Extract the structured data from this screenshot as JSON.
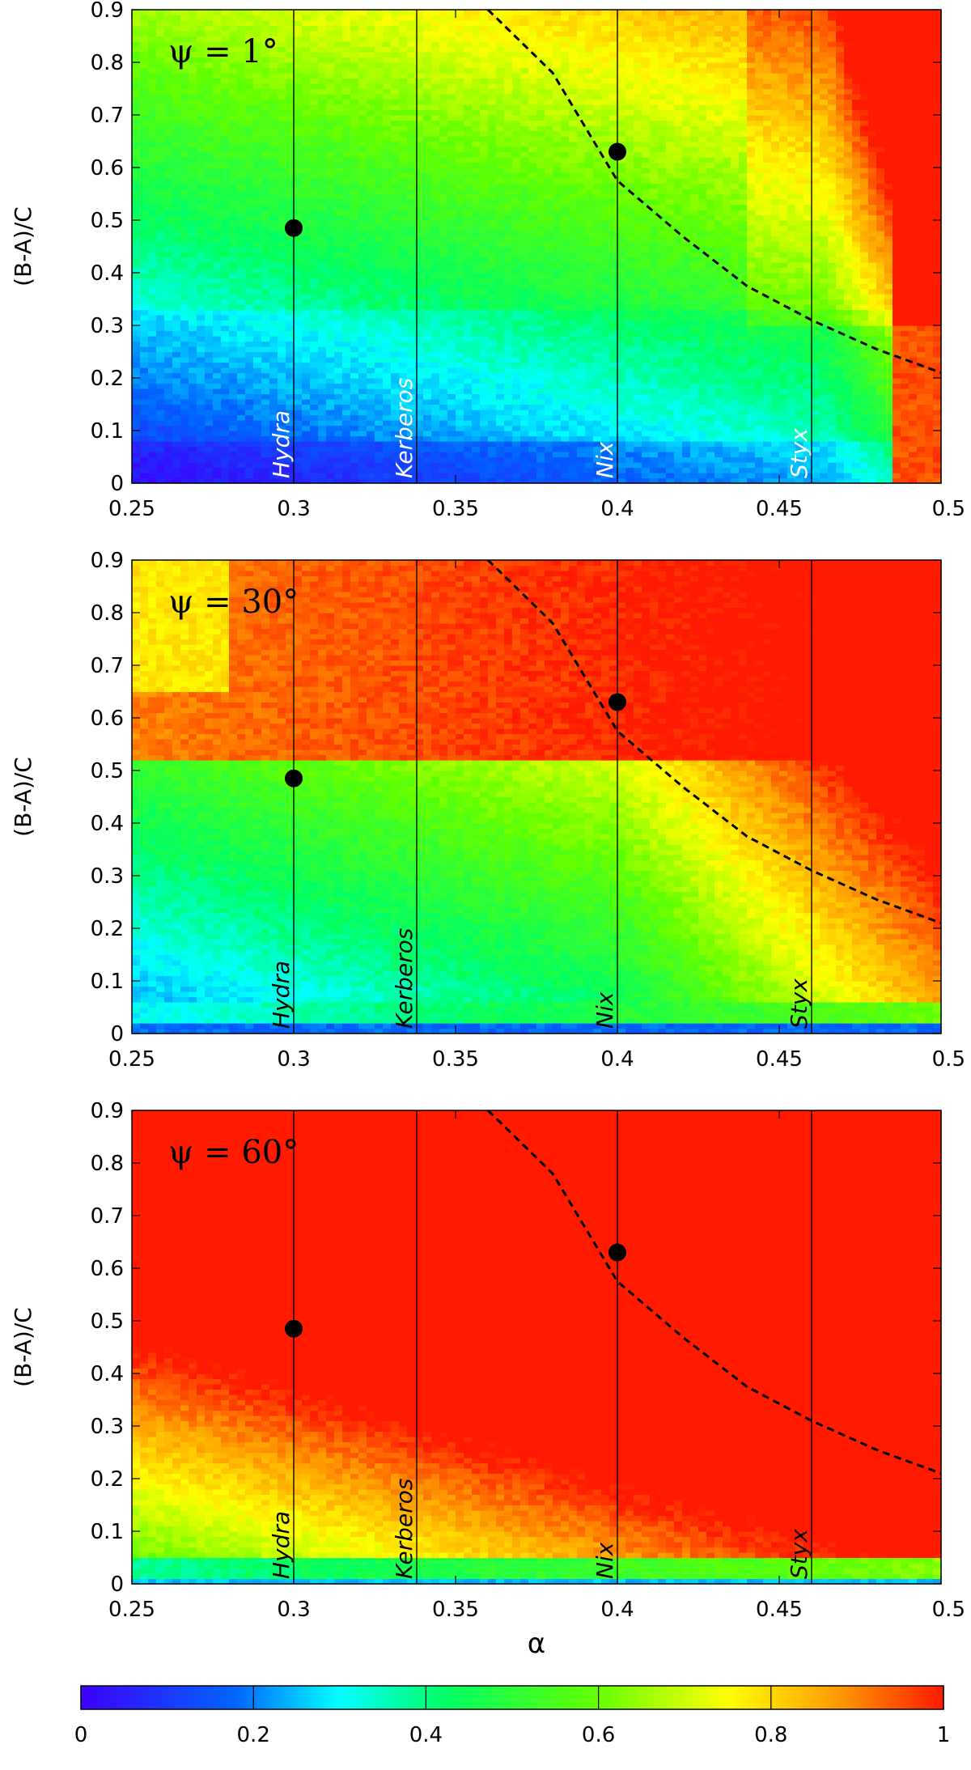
{
  "chart_data": [
    {
      "type": "heatmap",
      "annotation": "ψ = 1°",
      "xlabel": "",
      "ylabel": "(B-A)/C",
      "xlim": [
        0.25,
        0.5
      ],
      "ylim": [
        0,
        0.9
      ],
      "xticks": [
        "0.25",
        "0.3",
        "0.35",
        "0.4",
        "0.45",
        "0.5"
      ],
      "yticks": [
        "0",
        "0.1",
        "0.2",
        "0.3",
        "0.4",
        "0.5",
        "0.6",
        "0.7",
        "0.8",
        "0.9"
      ],
      "moons": [
        {
          "name": "Hydra",
          "x": 0.3
        },
        {
          "name": "Kerberos",
          "x": 0.338
        },
        {
          "name": "Nix",
          "x": 0.4
        },
        {
          "name": "Styx",
          "x": 0.46
        }
      ],
      "points": [
        {
          "x": 0.3,
          "y": 0.485
        },
        {
          "x": 0.4,
          "y": 0.63
        }
      ],
      "dashed_curve": [
        [
          0.36,
          0.9
        ],
        [
          0.38,
          0.78
        ],
        [
          0.4,
          0.575
        ],
        [
          0.42,
          0.47
        ],
        [
          0.44,
          0.375
        ],
        [
          0.46,
          0.31
        ],
        [
          0.48,
          0.255
        ],
        [
          0.5,
          0.21
        ]
      ],
      "colorbar_range": [
        0,
        1
      ],
      "grid": false
    },
    {
      "type": "heatmap",
      "annotation": "ψ = 30°",
      "xlabel": "",
      "ylabel": "(B-A)/C",
      "xlim": [
        0.25,
        0.5
      ],
      "ylim": [
        0,
        0.9
      ],
      "xticks": [
        "0.25",
        "0.3",
        "0.35",
        "0.4",
        "0.45",
        "0.5"
      ],
      "yticks": [
        "0",
        "0.1",
        "0.2",
        "0.3",
        "0.4",
        "0.5",
        "0.6",
        "0.7",
        "0.8",
        "0.9"
      ],
      "moons": [
        {
          "name": "Hydra",
          "x": 0.3
        },
        {
          "name": "Kerberos",
          "x": 0.338
        },
        {
          "name": "Nix",
          "x": 0.4
        },
        {
          "name": "Styx",
          "x": 0.46
        }
      ],
      "points": [
        {
          "x": 0.3,
          "y": 0.485
        },
        {
          "x": 0.4,
          "y": 0.63
        }
      ],
      "dashed_curve": [
        [
          0.36,
          0.9
        ],
        [
          0.38,
          0.78
        ],
        [
          0.4,
          0.575
        ],
        [
          0.42,
          0.47
        ],
        [
          0.44,
          0.375
        ],
        [
          0.46,
          0.31
        ],
        [
          0.48,
          0.255
        ],
        [
          0.5,
          0.21
        ]
      ],
      "colorbar_range": [
        0,
        1
      ],
      "grid": false
    },
    {
      "type": "heatmap",
      "annotation": "ψ = 60°",
      "xlabel": "α",
      "ylabel": "(B-A)/C",
      "xlim": [
        0.25,
        0.5
      ],
      "ylim": [
        0,
        0.9
      ],
      "xticks": [
        "0.25",
        "0.3",
        "0.35",
        "0.4",
        "0.45",
        "0.5"
      ],
      "yticks": [
        "0",
        "0.1",
        "0.2",
        "0.3",
        "0.4",
        "0.5",
        "0.6",
        "0.7",
        "0.8",
        "0.9"
      ],
      "moons": [
        {
          "name": "Hydra",
          "x": 0.3
        },
        {
          "name": "Kerberos",
          "x": 0.338
        },
        {
          "name": "Nix",
          "x": 0.4
        },
        {
          "name": "Styx",
          "x": 0.46
        }
      ],
      "points": [
        {
          "x": 0.3,
          "y": 0.485
        },
        {
          "x": 0.4,
          "y": 0.63
        }
      ],
      "dashed_curve": [
        [
          0.36,
          0.9
        ],
        [
          0.38,
          0.78
        ],
        [
          0.4,
          0.575
        ],
        [
          0.42,
          0.47
        ],
        [
          0.44,
          0.375
        ],
        [
          0.46,
          0.31
        ],
        [
          0.48,
          0.255
        ],
        [
          0.5,
          0.21
        ]
      ],
      "colorbar_range": [
        0,
        1
      ],
      "grid": false
    }
  ],
  "colorbar": {
    "ticks": [
      "0",
      "0.2",
      "0.4",
      "0.6",
      "0.8",
      "1"
    ],
    "colors": [
      "#3c00ff",
      "#0055ff",
      "#00ffff",
      "#00ff44",
      "#aaff00",
      "#ffff00",
      "#ff9900",
      "#ff1a00"
    ]
  }
}
